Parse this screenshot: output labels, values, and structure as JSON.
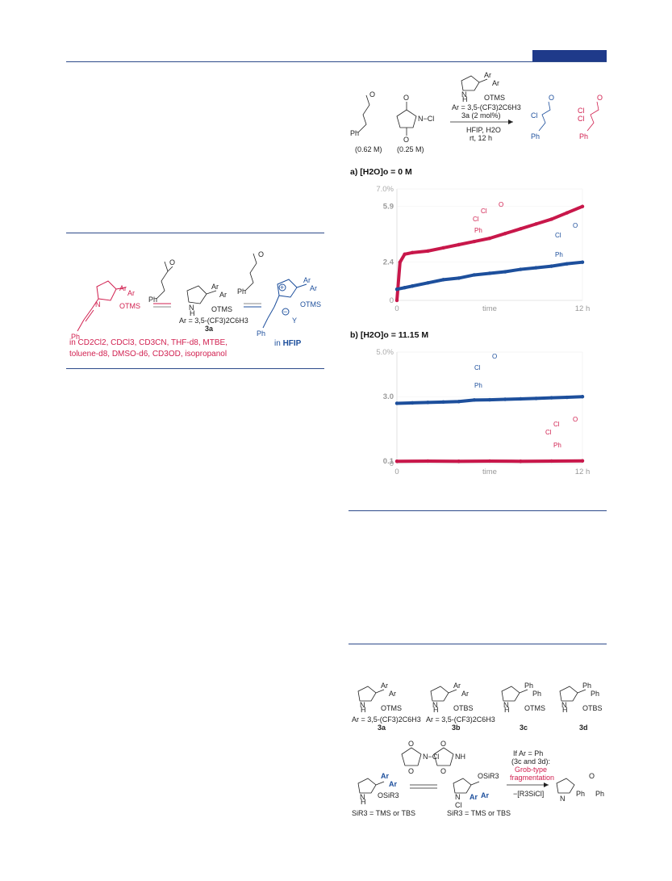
{
  "header": {
    "accent_color": "#1f3a8a"
  },
  "left_scheme": {
    "ar_def": "Ar = 3,5-(CF3)2C6H3",
    "cat_label": "3a",
    "solvents_line1": "in CD2Cl2, CDCl3, CD3CN, THF-d8, MTBE,",
    "solvents_line2": "toluene-d8, DMSO-d6, CD3OD, isopropanol",
    "hfip_prefix": "in ",
    "hfip_label": "HFIP"
  },
  "top_scheme": {
    "conc1": "(0.62 M)",
    "conc2": "(0.25 M)",
    "ar_def": "Ar = 3,5-(CF3)2C6H3",
    "cat": "3a (2 mol%)",
    "cond1": "HFIP, H2O",
    "cond2": "rt, 12 h"
  },
  "chart_data": [
    {
      "type": "line",
      "title": "a) [H2O]o = 0 M",
      "ylim": [
        0,
        7.0
      ],
      "yticks": [
        "7.0%",
        "5.9",
        "2.4",
        "0"
      ],
      "xticks": [
        "0",
        "time",
        "12 h"
      ],
      "series": [
        {
          "color": "#c8174a",
          "x": [
            0,
            0.2,
            0.5,
            1,
            2,
            3,
            4,
            5,
            6,
            7,
            8,
            9,
            10,
            11,
            12
          ],
          "y": [
            0,
            2.4,
            2.9,
            3.0,
            3.1,
            3.3,
            3.5,
            3.7,
            3.9,
            4.2,
            4.5,
            4.8,
            5.1,
            5.5,
            5.9
          ]
        },
        {
          "color": "#1d4f9c",
          "x": [
            0,
            0.5,
            1,
            2,
            3,
            4,
            5,
            6,
            7,
            8,
            9,
            10,
            11,
            12
          ],
          "y": [
            0.7,
            0.8,
            0.9,
            1.1,
            1.3,
            1.4,
            1.6,
            1.7,
            1.8,
            1.95,
            2.05,
            2.15,
            2.3,
            2.4
          ]
        }
      ]
    },
    {
      "type": "line",
      "title": "b) [H2O]o = 11.15 M",
      "ylim": [
        0,
        5.0
      ],
      "yticks": [
        "5.0%",
        "3.0",
        "0.1",
        "0"
      ],
      "xticks": [
        "0",
        "time",
        "12 h"
      ],
      "series": [
        {
          "color": "#1d4f9c",
          "x": [
            0,
            1,
            2,
            3,
            4,
            5,
            6,
            7,
            8,
            9,
            10,
            11,
            12
          ],
          "y": [
            2.7,
            2.72,
            2.74,
            2.76,
            2.78,
            2.85,
            2.86,
            2.88,
            2.9,
            2.92,
            2.95,
            2.97,
            3.0
          ]
        },
        {
          "color": "#c8174a",
          "x": [
            0,
            2,
            4,
            6,
            8,
            10,
            12
          ],
          "y": [
            0.1,
            0.11,
            0.1,
            0.11,
            0.1,
            0.11,
            0.12
          ]
        }
      ]
    }
  ],
  "bottom_scheme": {
    "ar_def_a": "Ar = 3,5-(CF3)2C6H3",
    "ar_def_b": "Ar = 3,5-(CF3)2C6H3",
    "label_a": "3a",
    "label_b": "3b",
    "label_c": "3c",
    "label_d": "3d",
    "sir_left": "SiR3 = TMS or TBS",
    "sir_right": "SiR3 = TMS or TBS",
    "if_line": "If Ar = Ph",
    "if_line2": "(3c and 3d):",
    "grob1": "Grob-type",
    "grob2": "fragmentation",
    "elim": "−[R3SiCl]"
  }
}
